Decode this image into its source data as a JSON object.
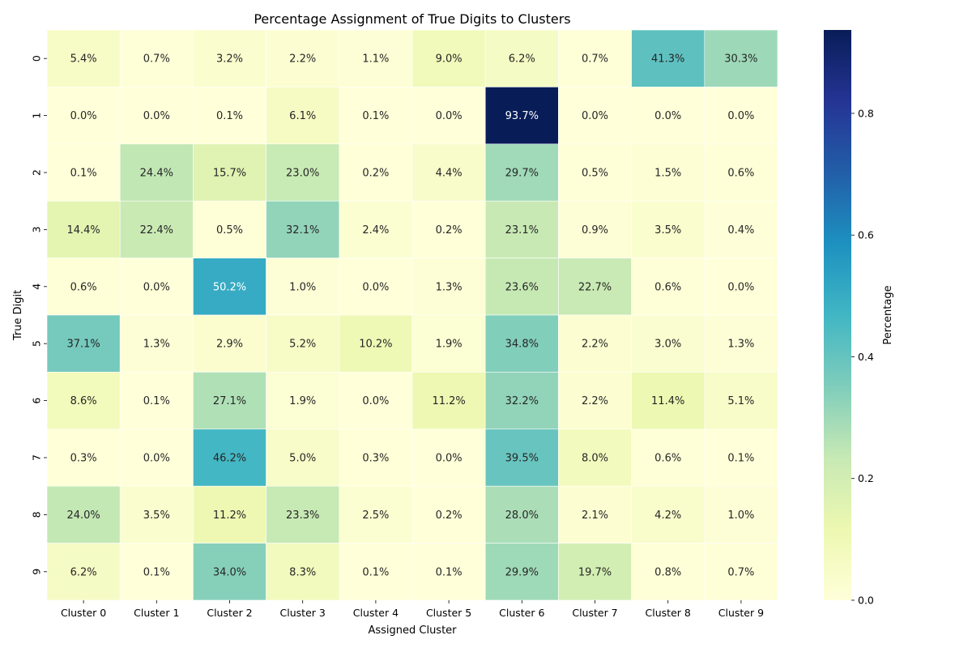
{
  "chart_data": {
    "type": "heatmap",
    "title": "Percentage Assignment of True Digits to Clusters",
    "xlabel": "Assigned Cluster",
    "ylabel": "True Digit",
    "x_categories": [
      "Cluster 0",
      "Cluster 1",
      "Cluster 2",
      "Cluster 3",
      "Cluster 4",
      "Cluster 5",
      "Cluster 6",
      "Cluster 7",
      "Cluster 8",
      "Cluster 9"
    ],
    "y_categories": [
      "0",
      "1",
      "2",
      "3",
      "4",
      "5",
      "6",
      "7",
      "8",
      "9"
    ],
    "values": [
      [
        0.054,
        0.007,
        0.032,
        0.022,
        0.011,
        0.09,
        0.062,
        0.007,
        0.413,
        0.303
      ],
      [
        0.0,
        0.0,
        0.001,
        0.061,
        0.001,
        0.0,
        0.937,
        0.0,
        0.0,
        0.0
      ],
      [
        0.001,
        0.244,
        0.157,
        0.23,
        0.002,
        0.044,
        0.297,
        0.005,
        0.015,
        0.006
      ],
      [
        0.144,
        0.224,
        0.005,
        0.321,
        0.024,
        0.002,
        0.231,
        0.009,
        0.035,
        0.004
      ],
      [
        0.006,
        0.0,
        0.502,
        0.01,
        0.0,
        0.013,
        0.236,
        0.227,
        0.006,
        0.0
      ],
      [
        0.371,
        0.013,
        0.029,
        0.052,
        0.102,
        0.019,
        0.348,
        0.022,
        0.03,
        0.013
      ],
      [
        0.086,
        0.001,
        0.271,
        0.019,
        0.0,
        0.112,
        0.322,
        0.022,
        0.114,
        0.051
      ],
      [
        0.003,
        0.0,
        0.462,
        0.05,
        0.003,
        0.0,
        0.395,
        0.08,
        0.006,
        0.001
      ],
      [
        0.24,
        0.035,
        0.112,
        0.233,
        0.025,
        0.002,
        0.28,
        0.021,
        0.042,
        0.01
      ],
      [
        0.062,
        0.001,
        0.34,
        0.083,
        0.001,
        0.001,
        0.299,
        0.197,
        0.008,
        0.007
      ]
    ],
    "cell_labels": [
      [
        "5.4%",
        "0.7%",
        "3.2%",
        "2.2%",
        "1.1%",
        "9.0%",
        "6.2%",
        "0.7%",
        "41.3%",
        "30.3%"
      ],
      [
        "0.0%",
        "0.0%",
        "0.1%",
        "6.1%",
        "0.1%",
        "0.0%",
        "93.7%",
        "0.0%",
        "0.0%",
        "0.0%"
      ],
      [
        "0.1%",
        "24.4%",
        "15.7%",
        "23.0%",
        "0.2%",
        "4.4%",
        "29.7%",
        "0.5%",
        "1.5%",
        "0.6%"
      ],
      [
        "14.4%",
        "22.4%",
        "0.5%",
        "32.1%",
        "2.4%",
        "0.2%",
        "23.1%",
        "0.9%",
        "3.5%",
        "0.4%"
      ],
      [
        "0.6%",
        "0.0%",
        "50.2%",
        "1.0%",
        "0.0%",
        "1.3%",
        "23.6%",
        "22.7%",
        "0.6%",
        "0.0%"
      ],
      [
        "37.1%",
        "1.3%",
        "2.9%",
        "5.2%",
        "10.2%",
        "1.9%",
        "34.8%",
        "2.2%",
        "3.0%",
        "1.3%"
      ],
      [
        "8.6%",
        "0.1%",
        "27.1%",
        "1.9%",
        "0.0%",
        "11.2%",
        "32.2%",
        "2.2%",
        "11.4%",
        "5.1%"
      ],
      [
        "0.3%",
        "0.0%",
        "46.2%",
        "5.0%",
        "0.3%",
        "0.0%",
        "39.5%",
        "8.0%",
        "0.6%",
        "0.1%"
      ],
      [
        "24.0%",
        "3.5%",
        "11.2%",
        "23.3%",
        "2.5%",
        "0.2%",
        "28.0%",
        "2.1%",
        "4.2%",
        "1.0%"
      ],
      [
        "6.2%",
        "0.1%",
        "34.0%",
        "8.3%",
        "0.1%",
        "0.1%",
        "29.9%",
        "19.7%",
        "0.8%",
        "0.7%"
      ]
    ],
    "colormap": "YlGnBu",
    "colormap_stops": [
      "#ffffd9",
      "#edf8b1",
      "#c7e9b4",
      "#7fcdbb",
      "#41b6c4",
      "#1d91c0",
      "#225ea8",
      "#253494",
      "#081d58"
    ],
    "vmin": 0.0,
    "vmax": 0.937,
    "colorbar": {
      "label": "Percentage",
      "ticks": [
        0.0,
        0.2,
        0.4,
        0.6,
        0.8
      ],
      "tick_labels": [
        "0.0",
        "0.2",
        "0.4",
        "0.6",
        "0.8"
      ]
    },
    "grid": false
  }
}
